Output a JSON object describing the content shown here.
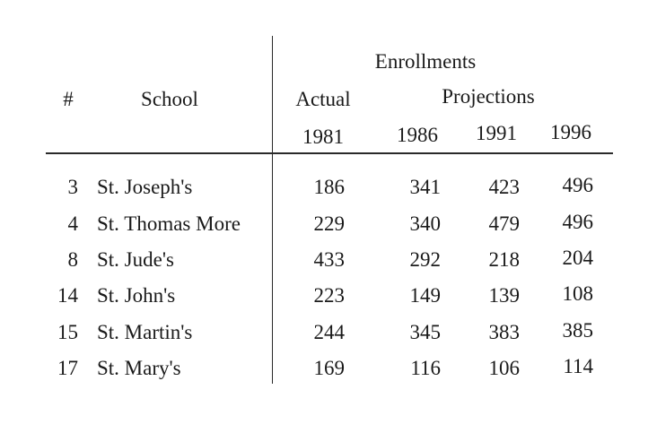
{
  "table": {
    "group_header": "Enrollments",
    "header": {
      "num": "#",
      "school": "School",
      "actual": "Actual",
      "projections": "Projections"
    },
    "years": [
      "1981",
      "1986",
      "1991",
      "1996"
    ],
    "rows": [
      {
        "num": "3",
        "school": "St. Joseph's",
        "values": [
          "186",
          "341",
          "423",
          "496"
        ]
      },
      {
        "num": "4",
        "school": "St. Thomas More",
        "values": [
          "229",
          "340",
          "479",
          "496"
        ]
      },
      {
        "num": "8",
        "school": "St. Jude's",
        "values": [
          "433",
          "292",
          "218",
          "204"
        ]
      },
      {
        "num": "14",
        "school": "St. John's",
        "values": [
          "223",
          "149",
          "139",
          "108"
        ]
      },
      {
        "num": "15",
        "school": "St. Martin's",
        "values": [
          "244",
          "345",
          "383",
          "385"
        ]
      },
      {
        "num": "17",
        "school": "St. Mary's",
        "values": [
          "169",
          "116",
          "106",
          "114"
        ]
      }
    ]
  }
}
